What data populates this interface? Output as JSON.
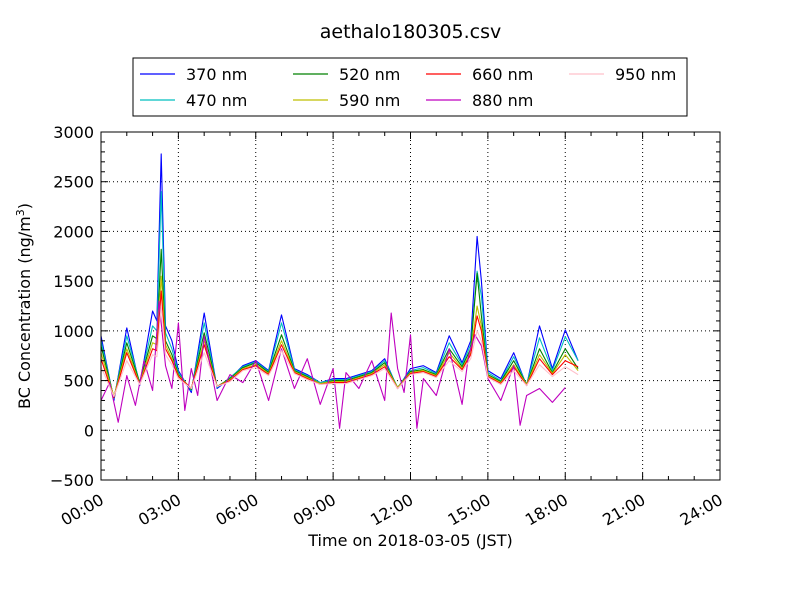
{
  "chart_data": {
    "type": "line",
    "title": "aethalo180305.csv",
    "xlabel": "Time on 2018-03-05 (JST)",
    "ylabel_main": "BC Concentration (ng/m",
    "ylabel_sup": "3",
    "ylabel_end": ")",
    "xlim": [
      "00:00",
      "24:00"
    ],
    "ylim": [
      -500,
      3000
    ],
    "grid": true,
    "legend_placement": "top-center",
    "x_ticks": [
      "00:00",
      "03:00",
      "06:00",
      "09:00",
      "12:00",
      "15:00",
      "18:00",
      "21:00",
      "24:00"
    ],
    "y_ticks": [
      "3000",
      "2500",
      "2000",
      "1500",
      "1000",
      "500",
      "0",
      "−500"
    ],
    "series": [
      {
        "name": "370 nm",
        "color": "#0000ff",
        "times": [
          "00:00",
          "00:30",
          "01:00",
          "01:30",
          "02:00",
          "02:10",
          "02:20",
          "02:30",
          "02:45",
          "03:00",
          "03:30",
          "04:00",
          "04:30",
          "05:00",
          "05:30",
          "06:00",
          "06:30",
          "07:00",
          "07:30",
          "08:00",
          "08:30",
          "09:00",
          "09:30",
          "10:00",
          "10:30",
          "11:00",
          "11:30",
          "12:00",
          "12:30",
          "13:00",
          "13:30",
          "14:00",
          "14:20",
          "14:35",
          "14:45",
          "15:00",
          "15:30",
          "16:00",
          "16:30",
          "17:00",
          "17:30",
          "18:00",
          "18:30"
        ],
        "values": [
          950,
          300,
          1030,
          450,
          1200,
          1100,
          2780,
          1050,
          900,
          600,
          380,
          1180,
          420,
          520,
          650,
          700,
          600,
          1160,
          620,
          560,
          480,
          520,
          520,
          560,
          600,
          720,
          420,
          620,
          650,
          580,
          950,
          680,
          900,
          1950,
          1500,
          600,
          520,
          780,
          450,
          1050,
          620,
          1010,
          700
        ]
      },
      {
        "name": "470 nm",
        "color": "#00bfbf",
        "times": [
          "00:00",
          "00:30",
          "01:00",
          "01:30",
          "02:00",
          "02:10",
          "02:20",
          "02:30",
          "02:45",
          "03:00",
          "03:30",
          "04:00",
          "04:30",
          "05:00",
          "05:30",
          "06:00",
          "06:30",
          "07:00",
          "07:30",
          "08:00",
          "08:30",
          "09:00",
          "09:30",
          "10:00",
          "10:30",
          "11:00",
          "11:30",
          "12:00",
          "12:30",
          "13:00",
          "13:30",
          "14:00",
          "14:20",
          "14:35",
          "14:45",
          "15:00",
          "15:30",
          "16:00",
          "16:30",
          "17:00",
          "17:30",
          "18:00",
          "18:30"
        ],
        "values": [
          900,
          320,
          950,
          480,
          1050,
          1000,
          2400,
          980,
          820,
          580,
          400,
          1080,
          430,
          530,
          640,
          690,
          590,
          1080,
          610,
          550,
          480,
          510,
          510,
          550,
          590,
          700,
          430,
          600,
          630,
          570,
          880,
          660,
          860,
          1600,
          1350,
          580,
          500,
          740,
          460,
          930,
          600,
          940,
          700
        ]
      },
      {
        "name": "520 nm",
        "color": "#008000",
        "times": [
          "00:00",
          "00:30",
          "01:00",
          "01:30",
          "02:00",
          "02:10",
          "02:20",
          "02:30",
          "02:45",
          "03:00",
          "03:30",
          "04:00",
          "04:30",
          "05:00",
          "05:30",
          "06:00",
          "06:30",
          "07:00",
          "07:30",
          "08:00",
          "08:30",
          "09:00",
          "09:30",
          "10:00",
          "10:30",
          "11:00",
          "11:30",
          "12:00",
          "12:30",
          "13:00",
          "13:30",
          "14:00",
          "14:20",
          "14:35",
          "14:45",
          "15:00",
          "15:30",
          "16:00",
          "16:30",
          "17:00",
          "17:30",
          "18:00",
          "18:30"
        ],
        "values": [
          850,
          330,
          880,
          480,
          950,
          920,
          1820,
          900,
          760,
          560,
          410,
          980,
          440,
          520,
          630,
          680,
          580,
          960,
          600,
          540,
          470,
          500,
          500,
          540,
          580,
          680,
          430,
          590,
          610,
          560,
          820,
          640,
          820,
          1580,
          1150,
          560,
          490,
          700,
          460,
          820,
          580,
          820,
          620
        ]
      },
      {
        "name": "590 nm",
        "color": "#bfbf00",
        "times": [
          "00:00",
          "00:30",
          "01:00",
          "01:30",
          "02:00",
          "02:10",
          "02:20",
          "02:30",
          "02:45",
          "03:00",
          "03:30",
          "04:00",
          "04:30",
          "05:00",
          "05:30",
          "06:00",
          "06:30",
          "07:00",
          "07:30",
          "08:00",
          "08:30",
          "09:00",
          "09:30",
          "10:00",
          "10:30",
          "11:00",
          "11:30",
          "12:00",
          "12:30",
          "13:00",
          "13:30",
          "14:00",
          "14:20",
          "14:35",
          "14:45",
          "15:00",
          "15:30",
          "16:00",
          "16:30",
          "17:00",
          "17:30",
          "18:00",
          "18:30"
        ],
        "values": [
          780,
          340,
          820,
          470,
          880,
          860,
          1550,
          860,
          720,
          550,
          420,
          900,
          440,
          510,
          620,
          660,
          570,
          900,
          590,
          530,
          470,
          490,
          490,
          530,
          570,
          660,
          430,
          580,
          600,
          550,
          780,
          620,
          780,
          1250,
          1050,
          550,
          480,
          660,
          460,
          760,
          570,
          760,
          600
        ]
      },
      {
        "name": "660 nm",
        "color": "#ff0000",
        "times": [
          "00:00",
          "00:30",
          "01:00",
          "01:30",
          "02:00",
          "02:10",
          "02:20",
          "02:30",
          "02:45",
          "03:00",
          "03:30",
          "04:00",
          "04:30",
          "05:00",
          "05:30",
          "06:00",
          "06:30",
          "07:00",
          "07:30",
          "08:00",
          "08:30",
          "09:00",
          "09:30",
          "10:00",
          "10:30",
          "11:00",
          "11:30",
          "12:00",
          "12:30",
          "13:00",
          "13:30",
          "14:00",
          "14:20",
          "14:35",
          "14:45",
          "15:00",
          "15:30",
          "16:00",
          "16:30",
          "17:00",
          "17:30",
          "18:00",
          "18:30"
        ],
        "values": [
          720,
          330,
          780,
          460,
          820,
          800,
          1400,
          820,
          700,
          540,
          420,
          860,
          440,
          500,
          610,
          650,
          560,
          860,
          580,
          520,
          460,
          480,
          480,
          520,
          560,
          640,
          420,
          570,
          590,
          540,
          740,
          610,
          760,
          1150,
          1000,
          540,
          470,
          640,
          450,
          720,
          560,
          700,
          640
        ]
      },
      {
        "name": "880 nm",
        "color": "#bf00bf",
        "times": [
          "00:00",
          "00:20",
          "00:40",
          "01:00",
          "01:20",
          "01:40",
          "02:00",
          "02:15",
          "02:30",
          "02:45",
          "03:00",
          "03:15",
          "03:30",
          "03:45",
          "04:00",
          "04:30",
          "05:00",
          "05:30",
          "06:00",
          "06:30",
          "07:00",
          "07:30",
          "08:00",
          "08:30",
          "09:00",
          "09:15",
          "09:30",
          "10:00",
          "10:30",
          "11:00",
          "11:15",
          "11:30",
          "11:45",
          "12:00",
          "12:15",
          "12:30",
          "13:00",
          "13:30",
          "14:00",
          "14:15",
          "14:30",
          "14:45",
          "15:00",
          "15:30",
          "16:00",
          "16:15",
          "16:30",
          "17:00",
          "17:30",
          "18:00"
        ],
        "values": [
          300,
          480,
          80,
          550,
          250,
          700,
          400,
          1300,
          650,
          420,
          1080,
          200,
          620,
          350,
          950,
          300,
          560,
          480,
          700,
          300,
          820,
          420,
          720,
          260,
          620,
          20,
          580,
          420,
          700,
          300,
          1180,
          620,
          380,
          960,
          20,
          520,
          350,
          820,
          260,
          750,
          960,
          850,
          520,
          300,
          650,
          50,
          350,
          420,
          280,
          430
        ]
      },
      {
        "name": "950 nm",
        "color": "#ffc0cb",
        "times": [
          "00:00",
          "00:30",
          "01:00",
          "01:30",
          "02:00",
          "02:10",
          "02:20",
          "02:30",
          "02:45",
          "03:00",
          "03:30",
          "04:00",
          "04:30",
          "05:00",
          "05:30",
          "06:00",
          "06:30",
          "07:00",
          "07:30",
          "08:00",
          "08:30",
          "09:00",
          "09:30",
          "10:00",
          "10:30",
          "11:00",
          "11:30",
          "12:00",
          "12:30",
          "13:00",
          "13:30",
          "14:00",
          "14:20",
          "14:35",
          "14:45",
          "15:00",
          "15:30",
          "16:00",
          "16:30",
          "17:00",
          "17:30",
          "18:00",
          "18:30"
        ],
        "values": [
          640,
          340,
          700,
          460,
          760,
          740,
          1250,
          760,
          660,
          520,
          420,
          780,
          440,
          490,
          600,
          630,
          550,
          800,
          570,
          510,
          460,
          470,
          470,
          510,
          550,
          620,
          420,
          560,
          580,
          530,
          700,
          590,
          720,
          1000,
          900,
          530,
          460,
          600,
          450,
          660,
          540,
          640,
          560
        ]
      }
    ]
  }
}
